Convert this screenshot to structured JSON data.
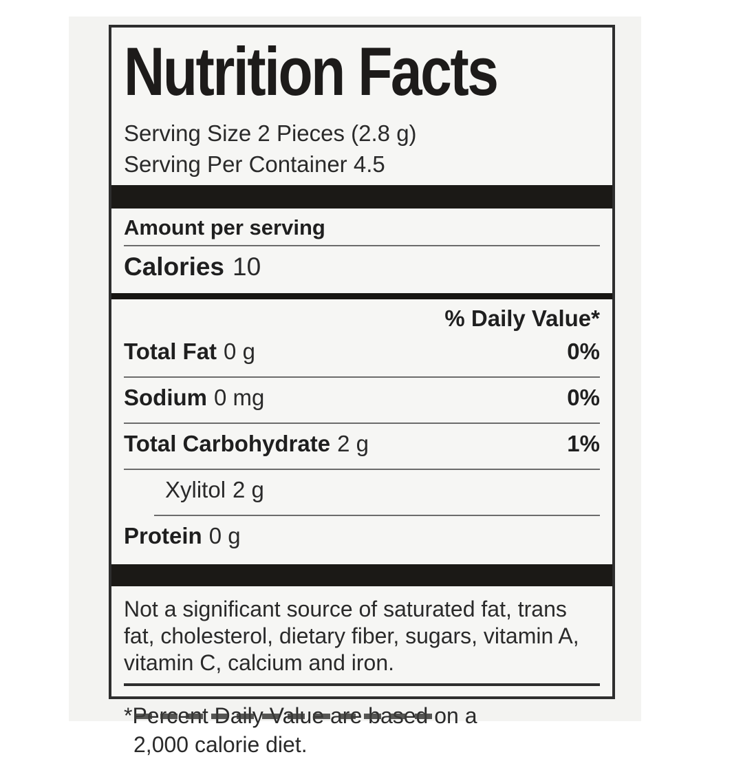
{
  "label": {
    "title": "Nutrition Facts",
    "serving_size": "Serving Size 2 Pieces (2.8 g)",
    "servings_per_container": "Serving Per Container 4.5",
    "amount_per_serving": "Amount per serving",
    "calories_label": "Calories",
    "calories_value": "10",
    "daily_value_header": "% Daily Value*",
    "rows": [
      {
        "name": "Total Fat",
        "amount": "0 g",
        "daily_value": "0%"
      },
      {
        "name": "Sodium",
        "amount": "0 mg",
        "daily_value": "0%"
      },
      {
        "name": "Total Carbohydrate",
        "amount": "2 g",
        "daily_value": "1%"
      },
      {
        "name": "Xylitol",
        "amount": "2 g",
        "daily_value": ""
      },
      {
        "name": "Protein",
        "amount": "0 g",
        "daily_value": ""
      }
    ],
    "disclaimer": "Not a significant source of saturated fat, trans fat, cholesterol, dietary fiber, sugars, vitamin A, vitamin C, calcium and iron.",
    "footnote_line1": "*Percent Daily Value are based on a",
    "footnote_line2": "2,000 calorie diet.",
    "colors": {
      "text": "#242424",
      "heavy_bar": "#1b1916",
      "border": "#2e2e2e",
      "label_background": "#f6f6f4",
      "photo_background": "#f3f3f1"
    }
  }
}
